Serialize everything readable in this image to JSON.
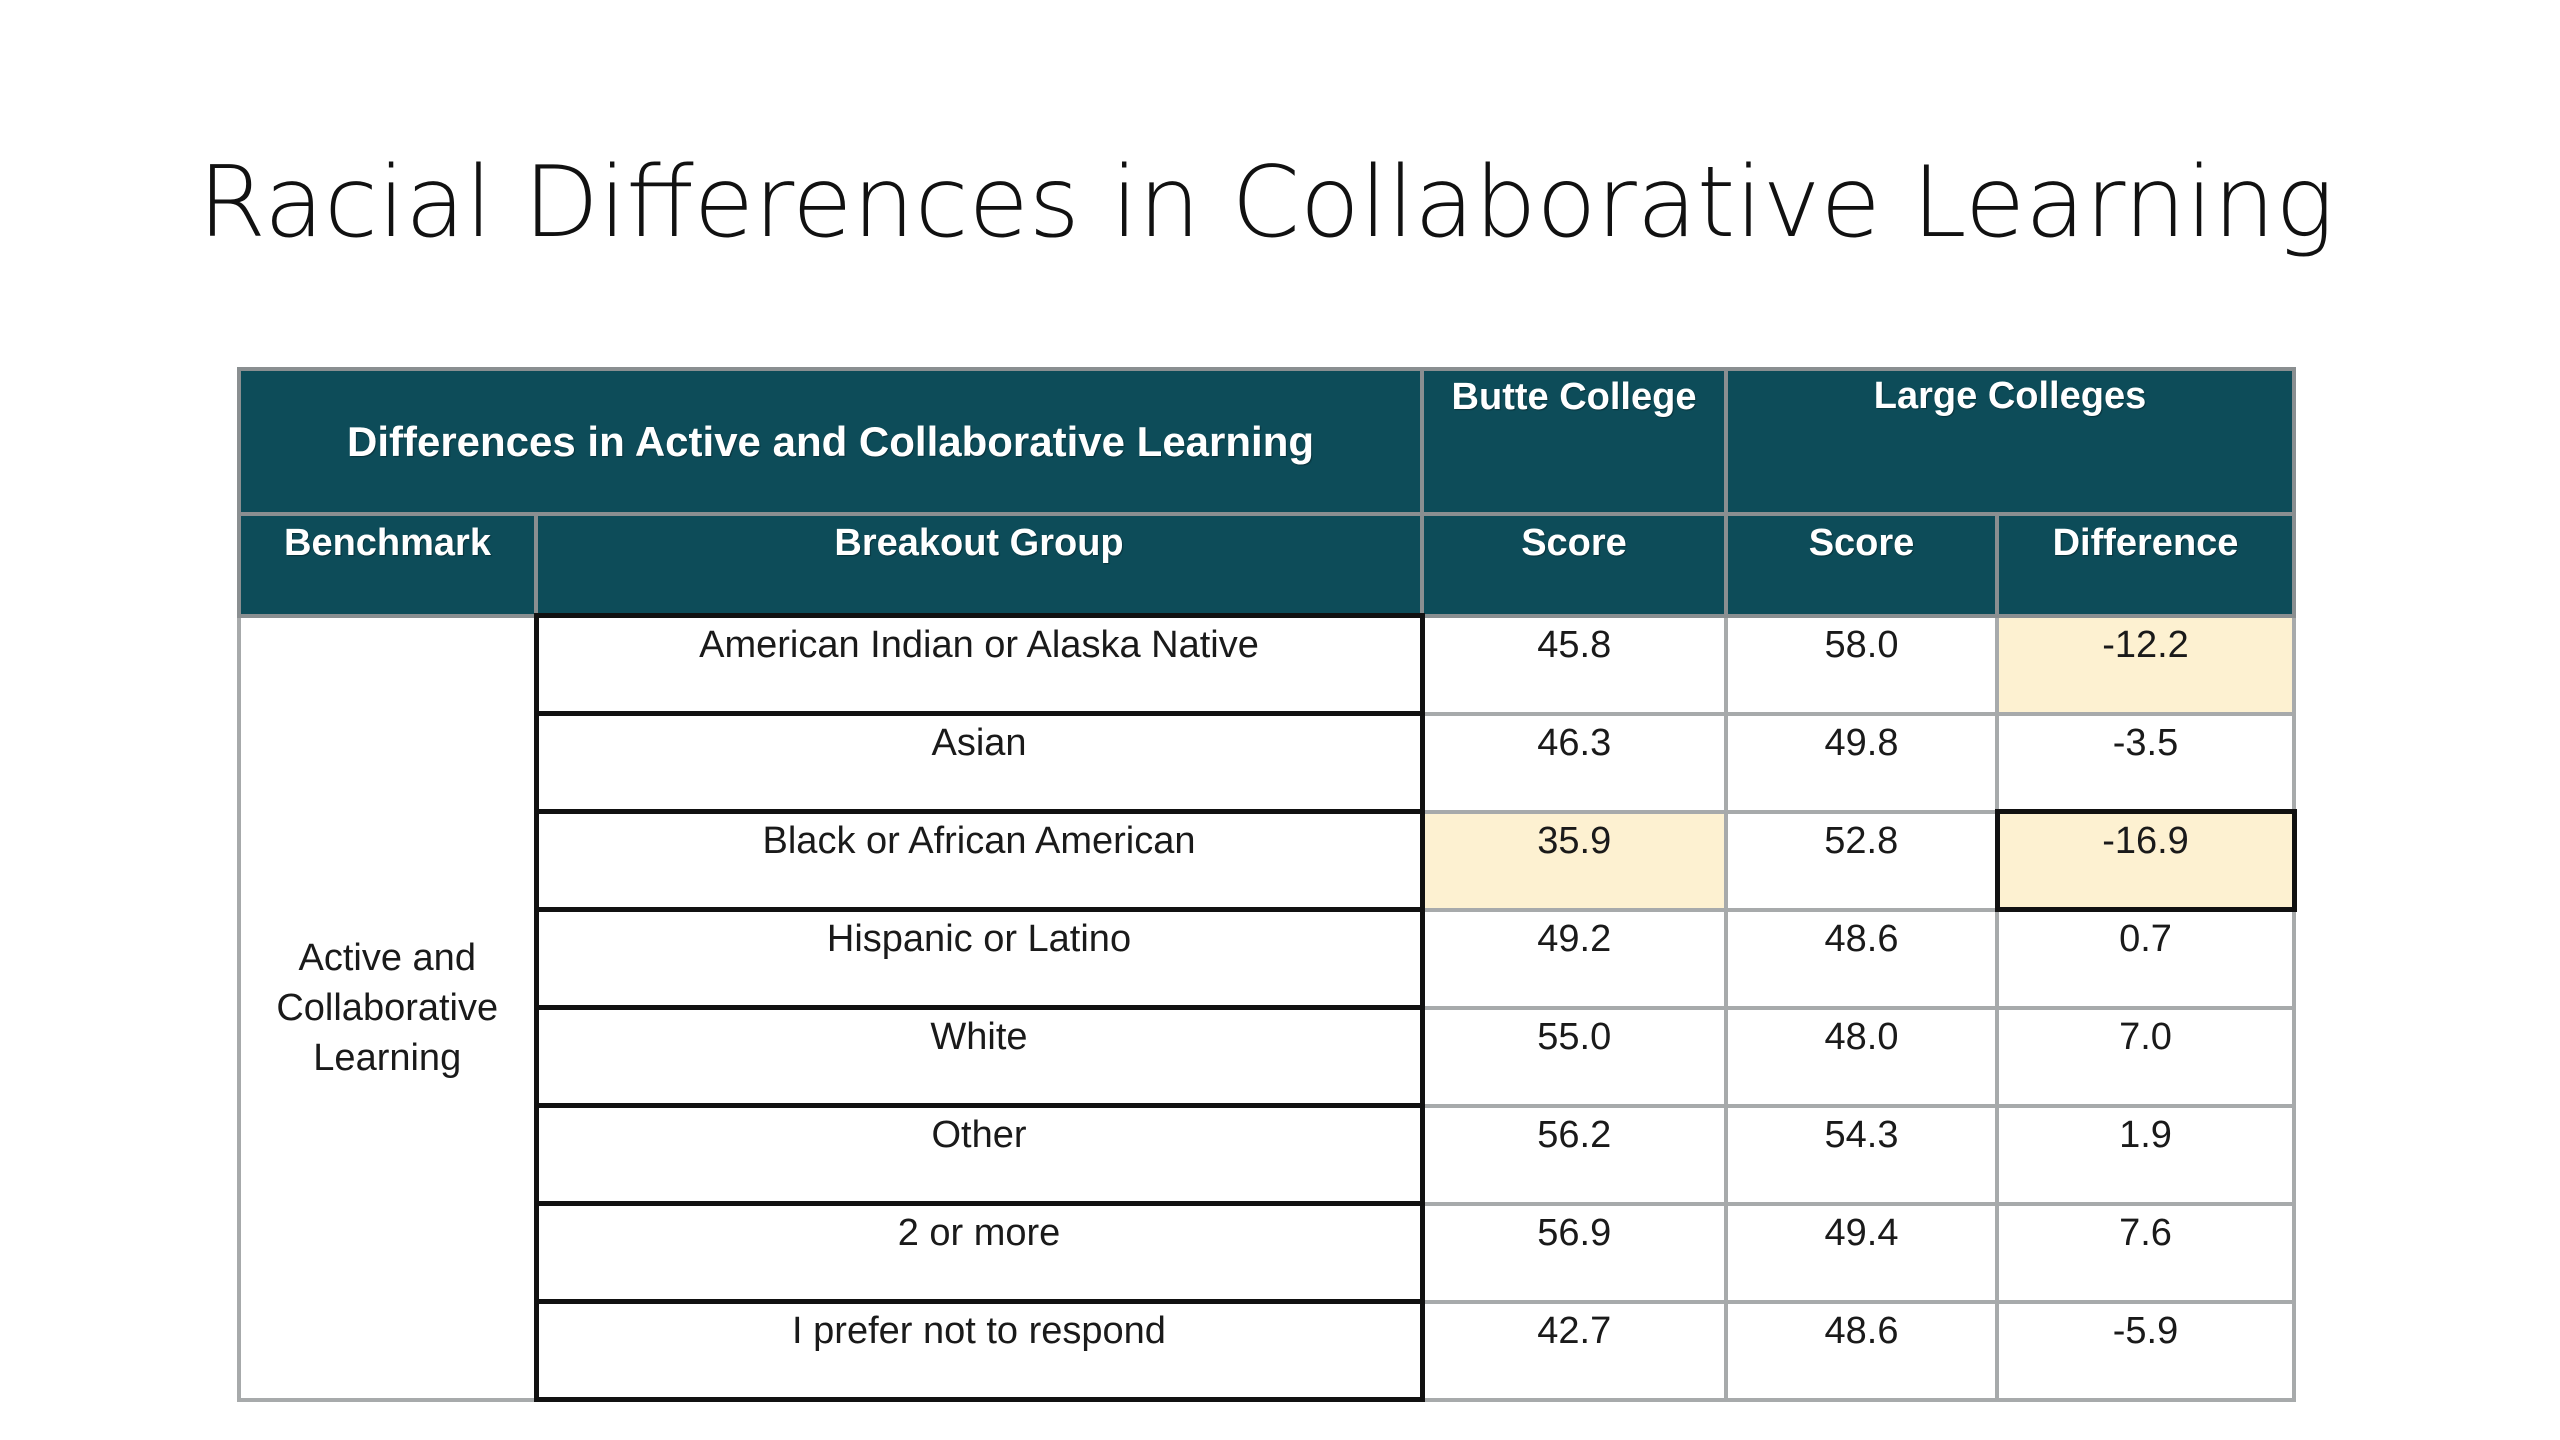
{
  "slide": {
    "title": "Racial Differences in Collaborative Learning"
  },
  "table": {
    "header": {
      "main": "Differences in Active and Collaborative Learning",
      "butte": "Butte College",
      "large": "Large Colleges"
    },
    "subheader": {
      "benchmark": "Benchmark",
      "breakout": "Breakout Group",
      "butte_score": "Score",
      "large_score": "Score",
      "difference": "Difference"
    },
    "benchmark": "Active and Collaborative Learning",
    "rows": [
      {
        "group": "American Indian or Alaska Native",
        "butte": "45.8",
        "large": "58.0",
        "diff": "-12.2"
      },
      {
        "group": "Asian",
        "butte": "46.3",
        "large": "49.8",
        "diff": "-3.5"
      },
      {
        "group": "Black or African American",
        "butte": "35.9",
        "large": "52.8",
        "diff": "-16.9"
      },
      {
        "group": "Hispanic or Latino",
        "butte": "49.2",
        "large": "48.6",
        "diff": "0.7"
      },
      {
        "group": "White",
        "butte": "55.0",
        "large": "48.0",
        "diff": "7.0"
      },
      {
        "group": "Other",
        "butte": "56.2",
        "large": "54.3",
        "diff": "1.9"
      },
      {
        "group": "2 or more",
        "butte": "56.9",
        "large": "49.4",
        "diff": "7.6"
      },
      {
        "group": "I prefer not to respond",
        "butte": "42.7",
        "large": "48.6",
        "diff": "-5.9"
      }
    ]
  },
  "colors": {
    "header_bg": "#0d4c59",
    "highlight": "#fdf1d1"
  }
}
